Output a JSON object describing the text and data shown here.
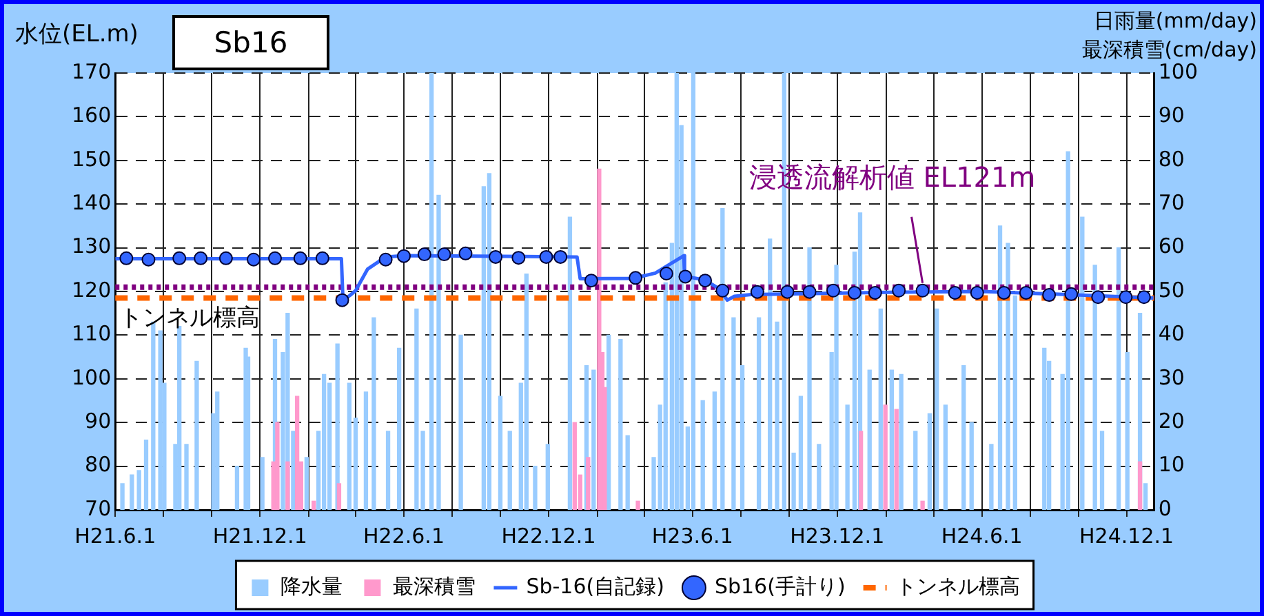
{
  "chart_data": {
    "type": "bar",
    "title": "Sb16",
    "ylabel": "水位(EL.m)",
    "y2label": "日雨量(mm/day)\n最深積雪(cm/day)",
    "xlim": [
      "2009-06-01",
      "2013-01-05"
    ],
    "xticks": [
      {
        "value": "2009-06-01",
        "label": "H21.6.1"
      },
      {
        "value": "2009-08-01",
        "label": null
      },
      {
        "value": "2009-10-01",
        "label": null
      },
      {
        "value": "2009-12-01",
        "label": "H21.12.1"
      },
      {
        "value": "2010-02-01",
        "label": null
      },
      {
        "value": "2010-04-01",
        "label": null
      },
      {
        "value": "2010-06-01",
        "label": "H22.6.1"
      },
      {
        "value": "2010-08-01",
        "label": null
      },
      {
        "value": "2010-10-01",
        "label": null
      },
      {
        "value": "2010-12-01",
        "label": "H22.12.1"
      },
      {
        "value": "2011-02-01",
        "label": null
      },
      {
        "value": "2011-04-01",
        "label": null
      },
      {
        "value": "2011-06-01",
        "label": "H23.6.1"
      },
      {
        "value": "2011-08-01",
        "label": null
      },
      {
        "value": "2011-10-01",
        "label": null
      },
      {
        "value": "2011-12-01",
        "label": "H23.12.1"
      },
      {
        "value": "2012-02-01",
        "label": null
      },
      {
        "value": "2012-04-01",
        "label": null
      },
      {
        "value": "2012-06-01",
        "label": "H24.6.1"
      },
      {
        "value": "2012-08-01",
        "label": null
      },
      {
        "value": "2012-10-01",
        "label": null
      },
      {
        "value": "2012-12-01",
        "label": "H24.12.1"
      }
    ],
    "ylim": [
      70,
      170
    ],
    "yticks": [
      70,
      80,
      90,
      100,
      110,
      120,
      130,
      140,
      150,
      160,
      170
    ],
    "y2lim": [
      0,
      100
    ],
    "y2ticks": [
      0,
      10,
      20,
      30,
      40,
      50,
      60,
      70,
      80,
      90,
      100
    ],
    "grid": true,
    "legend": "bottom",
    "series": [
      {
        "name": "降水量",
        "axis": "y2",
        "color": "#99ccff",
        "x": [
          "2009-06-10",
          "2009-06-22",
          "2009-07-01",
          "2009-07-10",
          "2009-07-19",
          "2009-07-28",
          "2009-08-02",
          "2009-08-16",
          "2009-08-21",
          "2009-08-30",
          "2009-09-12",
          "2009-10-03",
          "2009-10-08",
          "2009-11-02",
          "2009-11-13",
          "2009-11-16",
          "2009-12-04",
          "2009-12-20",
          "2009-12-30",
          "2010-01-05",
          "2010-01-12",
          "2010-01-29",
          "2010-02-13",
          "2010-02-20",
          "2010-02-27",
          "2010-03-09",
          "2010-03-24",
          "2010-04-01",
          "2010-04-14",
          "2010-04-24",
          "2010-05-12",
          "2010-05-26",
          "2010-06-17",
          "2010-06-25",
          "2010-07-06",
          "2010-07-15",
          "2010-08-12",
          "2010-09-10",
          "2010-09-17",
          "2010-10-01",
          "2010-10-13",
          "2010-10-27",
          "2010-11-03",
          "2010-11-14",
          "2010-11-30",
          "2010-12-28",
          "2011-01-18",
          "2011-01-27",
          "2011-02-15",
          "2011-03-02",
          "2011-03-11",
          "2011-04-13",
          "2011-04-21",
          "2011-04-28",
          "2011-05-06",
          "2011-05-12",
          "2011-05-18",
          "2011-05-26",
          "2011-06-02",
          "2011-06-14",
          "2011-06-29",
          "2011-07-09",
          "2011-07-23",
          "2011-08-03",
          "2011-08-24",
          "2011-09-07",
          "2011-09-16",
          "2011-09-25",
          "2011-10-07",
          "2011-10-16",
          "2011-10-27",
          "2011-11-08",
          "2011-11-24",
          "2011-11-30",
          "2011-12-14",
          "2011-12-23",
          "2011-12-30",
          "2012-01-11",
          "2012-01-25",
          "2012-02-08",
          "2012-02-20",
          "2012-03-09",
          "2012-03-27",
          "2012-04-05",
          "2012-04-16",
          "2012-05-09",
          "2012-05-19",
          "2012-06-13",
          "2012-06-24",
          "2012-07-04",
          "2012-07-13",
          "2012-08-19",
          "2012-08-25",
          "2012-09-11",
          "2012-09-18",
          "2012-10-06",
          "2012-10-22",
          "2012-10-31",
          "2012-11-21",
          "2012-12-02",
          "2012-12-18",
          "2012-12-25"
        ],
        "values": [
          6,
          8,
          9,
          16,
          43,
          41,
          29,
          15,
          42,
          15,
          34,
          22,
          27,
          10,
          37,
          35,
          12,
          39,
          36,
          45,
          18,
          12,
          18,
          31,
          29,
          38,
          29,
          21,
          27,
          44,
          18,
          37,
          46,
          18,
          100,
          72,
          40,
          74,
          77,
          26,
          18,
          29,
          54,
          10,
          15,
          67,
          33,
          32,
          40,
          39,
          17,
          12,
          24,
          52,
          61,
          100,
          88,
          19,
          100,
          25,
          27,
          69,
          44,
          33,
          44,
          62,
          43,
          100,
          13,
          26,
          60,
          15,
          36,
          56,
          24,
          59,
          68,
          32,
          46,
          32,
          31,
          18,
          22,
          46,
          24,
          33,
          20,
          15,
          65,
          61,
          49,
          37,
          34,
          31,
          82,
          67,
          56,
          18,
          60,
          36,
          45,
          6
        ]
      },
      {
        "name": "最深積雪",
        "axis": "y2",
        "color": "#ff99cc",
        "x": [
          "2009-12-18",
          "2009-12-23",
          "2010-01-05",
          "2010-01-17",
          "2010-01-22",
          "2010-02-07",
          "2010-03-11",
          "2011-01-03",
          "2011-01-10",
          "2011-01-20",
          "2011-02-03",
          "2011-02-07",
          "2011-02-10",
          "2011-03-24",
          "2011-12-31",
          "2012-01-31",
          "2012-02-14",
          "2012-03-18",
          "2012-12-18"
        ],
        "values": [
          11,
          20,
          11,
          26,
          11,
          2,
          6,
          20,
          8,
          12,
          78,
          36,
          28,
          2,
          18,
          24,
          23,
          2,
          11
        ]
      },
      {
        "name": "Sb-16(自記録)",
        "type": "line",
        "marker": "none",
        "color": "#3366ff",
        "x": [
          "2009-06-01",
          "2010-03-14",
          "2010-03-16",
          "2010-04-01",
          "2010-04-16",
          "2010-05-09",
          "2010-06-01",
          "2011-01-06",
          "2011-01-10",
          "2011-03-18",
          "2011-04-15",
          "2011-05-21",
          "2011-05-22",
          "2011-06-17",
          "2011-07-06",
          "2011-07-15",
          "2011-07-24",
          "2011-08-14",
          "2012-02-01",
          "2012-06-01",
          "2012-09-01",
          "2013-01-04"
        ],
        "values": [
          127.5,
          127.5,
          117.8,
          120.2,
          125.1,
          127.9,
          128.2,
          127.9,
          122.9,
          123,
          124.2,
          128.2,
          123.5,
          122.6,
          120.5,
          118,
          118.9,
          119.3,
          119.8,
          120,
          119.4,
          118.5
        ]
      },
      {
        "name": "Sb16(手計り)",
        "type": "scatter",
        "marker": "circle",
        "color": "#3366ff",
        "x": [
          "2009-06-15",
          "2009-07-13",
          "2009-08-21",
          "2009-09-17",
          "2009-10-19",
          "2009-11-23",
          "2009-12-20",
          "2010-01-21",
          "2010-02-18",
          "2010-03-15",
          "2010-05-09",
          "2010-06-01",
          "2010-06-27",
          "2010-07-22",
          "2010-08-18",
          "2010-09-25",
          "2010-10-24",
          "2010-11-28",
          "2010-12-16",
          "2011-01-24",
          "2011-03-21",
          "2011-04-29",
          "2011-05-23",
          "2011-06-17",
          "2011-07-09",
          "2011-08-22",
          "2011-09-29",
          "2011-10-27",
          "2011-11-26",
          "2011-12-23",
          "2012-01-18",
          "2012-02-17",
          "2012-03-18",
          "2012-04-28",
          "2012-05-26",
          "2012-06-29",
          "2012-07-27",
          "2012-08-25",
          "2012-09-22",
          "2012-10-26",
          "2012-11-30",
          "2012-12-23"
        ],
        "values": [
          127.6,
          127.3,
          127.6,
          127.6,
          127.6,
          127.3,
          127.6,
          127.6,
          127.6,
          118,
          127.3,
          128.1,
          128.5,
          128.5,
          128.7,
          127.9,
          127.7,
          127.9,
          127.9,
          122.5,
          123.1,
          124.1,
          123.4,
          122.5,
          120.2,
          119.9,
          119.9,
          119.9,
          120.2,
          119.7,
          119.7,
          120.2,
          120.2,
          119.7,
          119.7,
          119.7,
          119.7,
          119.2,
          119.4,
          118.7,
          118.7,
          118.7
        ]
      }
    ],
    "ref_lines": [
      {
        "axis": "y",
        "value": 121,
        "color": "#800080",
        "line_style": "dotted"
      },
      {
        "axis": "y",
        "value": 118.5,
        "label": "トンネル標高",
        "color": "#ff6600",
        "line_style": "dashed"
      }
    ],
    "annotations": [
      {
        "text": "浸透流解析値 EL121m",
        "x": "2012-03-18",
        "y": 121
      }
    ]
  }
}
